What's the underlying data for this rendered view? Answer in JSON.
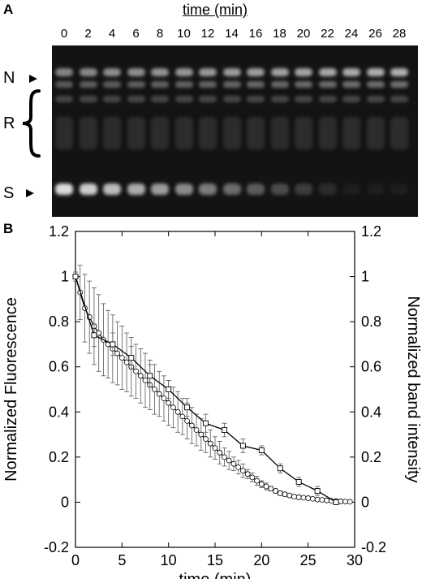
{
  "panel_a": {
    "label": "A",
    "time_header": "time (min)",
    "lanes": [
      "0",
      "2",
      "4",
      "6",
      "8",
      "10",
      "12",
      "14",
      "16",
      "18",
      "20",
      "22",
      "24",
      "26",
      "28"
    ],
    "band_labels": {
      "n": "N",
      "r": "R",
      "s": "S"
    }
  },
  "panel_b": {
    "label": "B"
  },
  "chart_data": {
    "type": "line",
    "xlabel": "time (min)",
    "ylabel_left": "Normalized Fluorescence",
    "ylabel_right": "Normalized band intensity",
    "xlim": [
      0,
      30
    ],
    "ylim": [
      -0.2,
      1.2
    ],
    "x_ticks": [
      "0",
      "5",
      "10",
      "15",
      "20",
      "25",
      "30"
    ],
    "y_ticks": [
      "-0.2",
      "0",
      "0.2",
      "0.4",
      "0.6",
      "0.8",
      "1",
      "1.2"
    ],
    "series": [
      {
        "marker": "circle",
        "x": [
          0,
          0.5,
          1,
          1.5,
          2,
          2.5,
          3,
          3.5,
          4,
          4.5,
          5,
          5.5,
          6,
          6.5,
          7,
          7.5,
          8,
          8.5,
          9,
          9.5,
          10,
          10.5,
          11,
          11.5,
          12,
          12.5,
          13,
          13.5,
          14,
          14.5,
          15,
          15.5,
          16,
          16.5,
          17,
          17.5,
          18,
          18.5,
          19,
          19.5,
          20,
          20.5,
          21,
          21.5,
          22,
          22.5,
          23,
          23.5,
          24,
          24.5,
          25,
          25.5,
          26,
          26.5,
          27,
          27.5,
          28,
          28.5,
          29,
          29.5
        ],
        "y": [
          1.0,
          0.93,
          0.86,
          0.82,
          0.78,
          0.75,
          0.72,
          0.7,
          0.68,
          0.66,
          0.64,
          0.62,
          0.6,
          0.58,
          0.56,
          0.54,
          0.52,
          0.5,
          0.48,
          0.46,
          0.44,
          0.42,
          0.4,
          0.38,
          0.36,
          0.34,
          0.32,
          0.3,
          0.28,
          0.26,
          0.24,
          0.22,
          0.2,
          0.185,
          0.17,
          0.155,
          0.14,
          0.125,
          0.11,
          0.095,
          0.08,
          0.07,
          0.06,
          0.05,
          0.04,
          0.035,
          0.03,
          0.025,
          0.022,
          0.02,
          0.018,
          0.015,
          0.012,
          0.01,
          0.008,
          0.006,
          0.005,
          0.004,
          0.003,
          0.002
        ],
        "err": [
          0.02,
          0.12,
          0.15,
          0.16,
          0.17,
          0.17,
          0.16,
          0.15,
          0.15,
          0.14,
          0.14,
          0.13,
          0.13,
          0.12,
          0.12,
          0.12,
          0.11,
          0.11,
          0.1,
          0.1,
          0.1,
          0.09,
          0.09,
          0.08,
          0.08,
          0.08,
          0.07,
          0.07,
          0.06,
          0.06,
          0.05,
          0.05,
          0.04,
          0.04,
          0.03,
          0.03,
          0.03,
          0.02,
          0.02,
          0.02,
          0.015,
          0.015,
          0.01,
          0.01,
          0.01,
          0.008,
          0.008,
          0.006,
          0.006,
          0.005,
          0.005,
          0.005,
          0.004,
          0.004,
          0.003,
          0.003,
          0.003,
          0.002,
          0.002,
          0.002
        ]
      },
      {
        "marker": "square",
        "x": [
          0,
          2,
          4,
          6,
          8,
          10,
          12,
          14,
          16,
          18,
          20,
          22,
          24,
          26,
          28
        ],
        "y": [
          1.0,
          0.74,
          0.7,
          0.64,
          0.56,
          0.5,
          0.42,
          0.35,
          0.32,
          0.25,
          0.23,
          0.15,
          0.09,
          0.05,
          0.0
        ],
        "err": [
          0.01,
          0.05,
          0.05,
          0.05,
          0.05,
          0.04,
          0.04,
          0.04,
          0.03,
          0.03,
          0.02,
          0.02,
          0.02,
          0.02,
          0.01
        ]
      }
    ]
  }
}
